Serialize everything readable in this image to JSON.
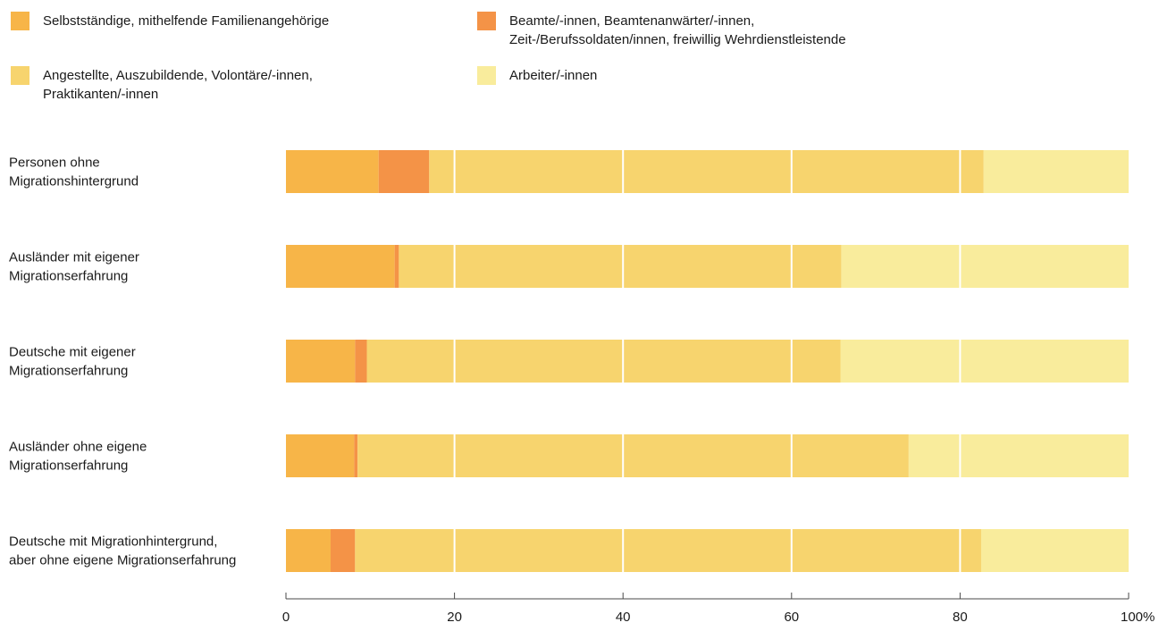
{
  "chart_data": {
    "type": "bar",
    "orientation": "horizontal",
    "stacked": true,
    "categories": [
      [
        "Personen ohne",
        "Migrationshintergrund"
      ],
      [
        "Ausländer mit eigener",
        "Migrationserfahrung"
      ],
      [
        "Deutsche mit eigener",
        "Migrationserfahrung"
      ],
      [
        "Ausländer ohne eigene",
        "Migrationserfahrung"
      ],
      [
        "Deutsche mit Migrationhintergrund,",
        "aber ohne eigene Migrationserfahrung"
      ]
    ],
    "series": [
      {
        "name": "Selbstständige, mithelfende Familienangehörige",
        "color": "#F7B548",
        "values": [
          11.0,
          12.9,
          8.2,
          8.1,
          5.3
        ]
      },
      {
        "name": "Beamte/-innen, Beamtenanwärter/-innen,\nZeit-/Berufssoldaten/innen, freiwillig Wehrdienstleistende",
        "color": "#F49347",
        "values": [
          6.0,
          0.5,
          1.4,
          0.4,
          2.9
        ]
      },
      {
        "name": "Angestellte, Auszubildende, Volontäre/-innen,\nPraktikanten/-innen",
        "color": "#F7D46E",
        "values": [
          65.8,
          52.5,
          56.2,
          65.4,
          74.3
        ]
      },
      {
        "name": "Arbeiter/-innen",
        "color": "#F9EC9C",
        "values": [
          17.2,
          34.1,
          34.2,
          26.1,
          17.5
        ]
      }
    ],
    "xlim": [
      0,
      100
    ],
    "xticks": [
      0,
      20,
      40,
      60,
      80,
      100
    ],
    "xtick_labels": [
      "0",
      "20",
      "40",
      "60",
      "80",
      "100%"
    ],
    "grid": true,
    "legend_position": "top"
  }
}
